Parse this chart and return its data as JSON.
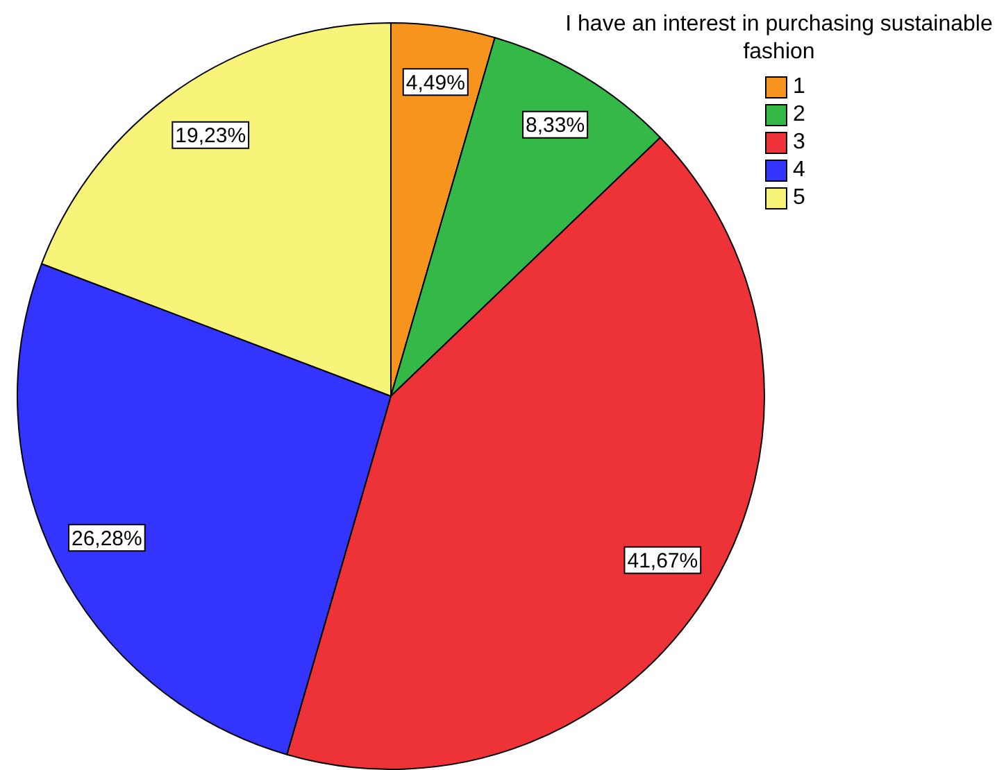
{
  "chart_data": {
    "type": "pie",
    "legend_title": "I have an interest in purchasing sustainable fashion",
    "categories": [
      "1",
      "2",
      "3",
      "4",
      "5"
    ],
    "values": [
      4.49,
      8.33,
      41.67,
      26.28,
      19.23
    ],
    "colors": [
      "#f7941e",
      "#34b848",
      "#ee3338",
      "#3434ff",
      "#f8f47a"
    ],
    "value_labels": [
      "4,49%",
      "8,33%",
      "41,67%",
      "26,28%",
      "19,23%"
    ],
    "legend": "top right"
  }
}
